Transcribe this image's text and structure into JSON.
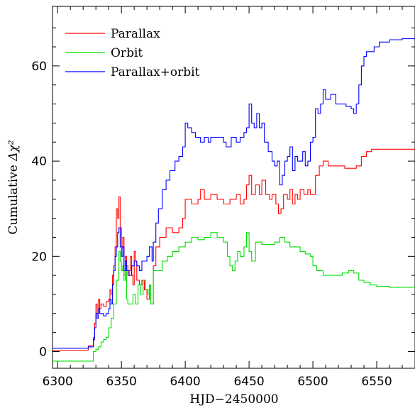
{
  "chart_data": {
    "type": "line",
    "xlabel": "HJD−2450000",
    "ylabel_prefix": "Cumulative ",
    "ylabel_symbol": "Δχ²",
    "xlim": [
      6296,
      6580
    ],
    "ylim": [
      -3.5,
      72.5
    ],
    "xticks": [
      6300,
      6350,
      6400,
      6450,
      6500,
      6550
    ],
    "yticks": [
      0,
      20,
      40,
      60
    ],
    "xtick_labels": [
      "6300",
      "6350",
      "6400",
      "6450",
      "6500",
      "6550"
    ],
    "ytick_labels": [
      "0",
      "20",
      "40",
      "60"
    ],
    "legend_position": "top-left",
    "series": [
      {
        "name": "Parallax",
        "color": "#ff0000",
        "points": [
          [
            6296,
            0.3
          ],
          [
            6322,
            0.3
          ],
          [
            6324,
            1.2
          ],
          [
            6327,
            1.2
          ],
          [
            6328,
            3
          ],
          [
            6329,
            6
          ],
          [
            6330,
            10
          ],
          [
            6331,
            8
          ],
          [
            6332,
            11
          ],
          [
            6333,
            9
          ],
          [
            6334,
            10
          ],
          [
            6336,
            9.5
          ],
          [
            6338,
            10.5
          ],
          [
            6340,
            11
          ],
          [
            6341,
            13
          ],
          [
            6342,
            12
          ],
          [
            6343,
            16
          ],
          [
            6344,
            18
          ],
          [
            6345,
            22
          ],
          [
            6346,
            30
          ],
          [
            6347,
            28
          ],
          [
            6348,
            32.5
          ],
          [
            6349,
            26
          ],
          [
            6350,
            22
          ],
          [
            6351,
            24
          ],
          [
            6352,
            16
          ],
          [
            6353,
            20
          ],
          [
            6354,
            18
          ],
          [
            6355,
            16
          ],
          [
            6356,
            17
          ],
          [
            6357,
            20
          ],
          [
            6358,
            16
          ],
          [
            6359,
            14
          ],
          [
            6360,
            21
          ],
          [
            6361,
            19
          ],
          [
            6362,
            15
          ],
          [
            6364,
            14
          ],
          [
            6366,
            15
          ],
          [
            6368,
            13
          ],
          [
            6370,
            11
          ],
          [
            6372,
            14
          ],
          [
            6373,
            10
          ],
          [
            6375,
            18
          ],
          [
            6377,
            22
          ],
          [
            6380,
            24
          ],
          [
            6385,
            26
          ],
          [
            6390,
            25
          ],
          [
            6395,
            26
          ],
          [
            6398,
            28
          ],
          [
            6400,
            32
          ],
          [
            6405,
            31
          ],
          [
            6410,
            32
          ],
          [
            6412,
            34
          ],
          [
            6415,
            32
          ],
          [
            6420,
            33
          ],
          [
            6425,
            32
          ],
          [
            6430,
            31
          ],
          [
            6435,
            32
          ],
          [
            6440,
            33
          ],
          [
            6443,
            31
          ],
          [
            6446,
            32
          ],
          [
            6448,
            35
          ],
          [
            6450,
            37
          ],
          [
            6452,
            33
          ],
          [
            6455,
            35
          ],
          [
            6458,
            33
          ],
          [
            6460,
            36
          ],
          [
            6463,
            33
          ],
          [
            6466,
            32
          ],
          [
            6468,
            33
          ],
          [
            6471,
            31
          ],
          [
            6473,
            29
          ],
          [
            6475,
            30
          ],
          [
            6477,
            33
          ],
          [
            6480,
            32
          ],
          [
            6482,
            34
          ],
          [
            6484,
            31
          ],
          [
            6486,
            33
          ],
          [
            6488,
            32
          ],
          [
            6490,
            34
          ],
          [
            6493,
            33
          ],
          [
            6496,
            34
          ],
          [
            6498,
            33
          ],
          [
            6500,
            33
          ],
          [
            6502,
            37
          ],
          [
            6505,
            39
          ],
          [
            6508,
            40
          ],
          [
            6512,
            39
          ],
          [
            6518,
            39
          ],
          [
            6525,
            38.5
          ],
          [
            6530,
            38.5
          ],
          [
            6534,
            39
          ],
          [
            6538,
            41
          ],
          [
            6542,
            42
          ],
          [
            6546,
            42.5
          ],
          [
            6555,
            42.5
          ],
          [
            6565,
            42.5
          ],
          [
            6580,
            42.6
          ]
        ]
      },
      {
        "name": "Orbit",
        "color": "#00e000",
        "points": [
          [
            6296,
            -2
          ],
          [
            6326,
            -2
          ],
          [
            6328,
            0
          ],
          [
            6330,
            0.5
          ],
          [
            6332,
            1
          ],
          [
            6334,
            2
          ],
          [
            6336,
            2.5
          ],
          [
            6338,
            3
          ],
          [
            6340,
            5
          ],
          [
            6342,
            7
          ],
          [
            6344,
            10
          ],
          [
            6346,
            15
          ],
          [
            6348,
            21
          ],
          [
            6349,
            19
          ],
          [
            6350,
            17
          ],
          [
            6351,
            18
          ],
          [
            6352,
            15
          ],
          [
            6353,
            18
          ],
          [
            6354,
            11
          ],
          [
            6355,
            10
          ],
          [
            6357,
            10
          ],
          [
            6359,
            12
          ],
          [
            6361,
            10
          ],
          [
            6363,
            14
          ],
          [
            6365,
            12
          ],
          [
            6367,
            15
          ],
          [
            6369,
            13
          ],
          [
            6371,
            12
          ],
          [
            6372,
            14
          ],
          [
            6373,
            10
          ],
          [
            6375,
            17
          ],
          [
            6378,
            17
          ],
          [
            6382,
            19
          ],
          [
            6386,
            20
          ],
          [
            6390,
            21
          ],
          [
            6395,
            22
          ],
          [
            6400,
            23
          ],
          [
            6405,
            24
          ],
          [
            6410,
            23.5
          ],
          [
            6415,
            24
          ],
          [
            6420,
            25
          ],
          [
            6425,
            24
          ],
          [
            6428,
            24
          ],
          [
            6430,
            23
          ],
          [
            6433,
            20
          ],
          [
            6435,
            18
          ],
          [
            6437,
            17
          ],
          [
            6439,
            19
          ],
          [
            6441,
            21
          ],
          [
            6443,
            20
          ],
          [
            6446,
            22
          ],
          [
            6448,
            25
          ],
          [
            6450,
            21
          ],
          [
            6452,
            19
          ],
          [
            6455,
            23
          ],
          [
            6460,
            22.5
          ],
          [
            6465,
            22.5
          ],
          [
            6470,
            23
          ],
          [
            6474,
            24
          ],
          [
            6478,
            23
          ],
          [
            6482,
            22
          ],
          [
            6486,
            22
          ],
          [
            6490,
            21
          ],
          [
            6494,
            20.5
          ],
          [
            6498,
            20
          ],
          [
            6500,
            18
          ],
          [
            6503,
            17
          ],
          [
            6508,
            16
          ],
          [
            6513,
            16
          ],
          [
            6518,
            16
          ],
          [
            6523,
            16.5
          ],
          [
            6528,
            17
          ],
          [
            6532,
            16.5
          ],
          [
            6536,
            15
          ],
          [
            6540,
            14.5
          ],
          [
            6545,
            14
          ],
          [
            6550,
            13.7
          ],
          [
            6560,
            13.5
          ],
          [
            6570,
            13.5
          ],
          [
            6580,
            13.4
          ]
        ]
      },
      {
        "name": "Parallax+orbit",
        "color": "#0000ff",
        "points": [
          [
            6296,
            0.7
          ],
          [
            6322,
            0.7
          ],
          [
            6324,
            1
          ],
          [
            6327,
            1
          ],
          [
            6328,
            2.5
          ],
          [
            6329,
            5
          ],
          [
            6330,
            8
          ],
          [
            6331,
            7
          ],
          [
            6332,
            9
          ],
          [
            6333,
            8
          ],
          [
            6334,
            8
          ],
          [
            6336,
            7.5
          ],
          [
            6338,
            8
          ],
          [
            6340,
            9
          ],
          [
            6341,
            11
          ],
          [
            6342,
            10
          ],
          [
            6343,
            14
          ],
          [
            6344,
            17
          ],
          [
            6345,
            20
          ],
          [
            6346,
            22
          ],
          [
            6347,
            25
          ],
          [
            6348,
            26
          ],
          [
            6349,
            22
          ],
          [
            6350,
            20
          ],
          [
            6351,
            22
          ],
          [
            6352,
            17
          ],
          [
            6353,
            19
          ],
          [
            6354,
            17
          ],
          [
            6356,
            16
          ],
          [
            6358,
            18
          ],
          [
            6360,
            19
          ],
          [
            6362,
            18
          ],
          [
            6364,
            17
          ],
          [
            6366,
            19
          ],
          [
            6368,
            19
          ],
          [
            6370,
            20
          ],
          [
            6372,
            22
          ],
          [
            6374,
            19
          ],
          [
            6375,
            23
          ],
          [
            6377,
            27
          ],
          [
            6379,
            30
          ],
          [
            6382,
            34
          ],
          [
            6385,
            36
          ],
          [
            6388,
            38
          ],
          [
            6392,
            40
          ],
          [
            6395,
            41
          ],
          [
            6398,
            43
          ],
          [
            6400,
            48
          ],
          [
            6402,
            47
          ],
          [
            6405,
            46
          ],
          [
            6408,
            45
          ],
          [
            6412,
            44
          ],
          [
            6415,
            45
          ],
          [
            6418,
            44
          ],
          [
            6420,
            45
          ],
          [
            6425,
            45
          ],
          [
            6430,
            44
          ],
          [
            6432,
            43
          ],
          [
            6436,
            45
          ],
          [
            6440,
            44
          ],
          [
            6443,
            45
          ],
          [
            6446,
            46
          ],
          [
            6448,
            47
          ],
          [
            6450,
            52
          ],
          [
            6452,
            48
          ],
          [
            6454,
            47
          ],
          [
            6456,
            50
          ],
          [
            6458,
            47
          ],
          [
            6460,
            48
          ],
          [
            6462,
            44
          ],
          [
            6465,
            42
          ],
          [
            6468,
            40
          ],
          [
            6470,
            39
          ],
          [
            6472,
            40
          ],
          [
            6474,
            35
          ],
          [
            6476,
            37
          ],
          [
            6478,
            40
          ],
          [
            6480,
            41
          ],
          [
            6482,
            43
          ],
          [
            6484,
            38
          ],
          [
            6486,
            41
          ],
          [
            6488,
            40
          ],
          [
            6490,
            40
          ],
          [
            6492,
            42
          ],
          [
            6494,
            39
          ],
          [
            6496,
            40
          ],
          [
            6498,
            44
          ],
          [
            6500,
            45
          ],
          [
            6502,
            51
          ],
          [
            6504,
            50
          ],
          [
            6506,
            52
          ],
          [
            6508,
            55
          ],
          [
            6510,
            53
          ],
          [
            6514,
            54
          ],
          [
            6518,
            52
          ],
          [
            6522,
            52
          ],
          [
            6526,
            51.5
          ],
          [
            6530,
            51
          ],
          [
            6532,
            50
          ],
          [
            6534,
            52
          ],
          [
            6536,
            56
          ],
          [
            6538,
            60
          ],
          [
            6540,
            62
          ],
          [
            6542,
            63
          ],
          [
            6545,
            63
          ],
          [
            6548,
            64
          ],
          [
            6552,
            65
          ],
          [
            6560,
            65.5
          ],
          [
            6570,
            65.7
          ],
          [
            6580,
            65.8
          ]
        ]
      }
    ]
  }
}
